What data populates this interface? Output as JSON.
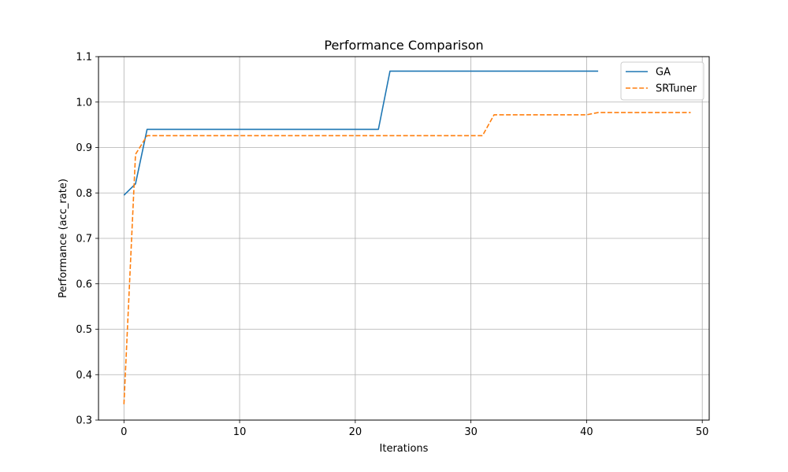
{
  "chart_data": {
    "type": "line",
    "title": "Performance Comparison",
    "xlabel": "Iterations",
    "ylabel": "Performance (acc_rate)",
    "xlim": [
      -2.2,
      50.6
    ],
    "ylim": [
      0.3,
      1.1
    ],
    "xticks": [
      0,
      10,
      20,
      30,
      40,
      50
    ],
    "xtick_labels": [
      "0",
      "10",
      "20",
      "30",
      "40",
      "50"
    ],
    "yticks": [
      0.3,
      0.4,
      0.5,
      0.6,
      0.7,
      0.8,
      0.9,
      1.0,
      1.1
    ],
    "ytick_labels": [
      "0.3",
      "0.4",
      "0.5",
      "0.6",
      "0.7",
      "0.8",
      "0.9",
      "1.0",
      "1.1"
    ],
    "grid": true,
    "legend_position": "top-right",
    "series": [
      {
        "name": "GA",
        "color": "#1f77b4",
        "style": "solid",
        "x": [
          0,
          1,
          2,
          3,
          4,
          5,
          6,
          7,
          8,
          9,
          10,
          11,
          12,
          13,
          14,
          15,
          16,
          17,
          18,
          19,
          20,
          21,
          22,
          23,
          24,
          25,
          26,
          27,
          28,
          29,
          30,
          31,
          32,
          33,
          34,
          35,
          36,
          37,
          38,
          39,
          40,
          41
        ],
        "y": [
          0.795,
          0.82,
          0.94,
          0.94,
          0.94,
          0.94,
          0.94,
          0.94,
          0.94,
          0.94,
          0.94,
          0.94,
          0.94,
          0.94,
          0.94,
          0.94,
          0.94,
          0.94,
          0.94,
          0.94,
          0.94,
          0.94,
          0.94,
          1.068,
          1.068,
          1.068,
          1.068,
          1.068,
          1.068,
          1.068,
          1.068,
          1.068,
          1.068,
          1.068,
          1.068,
          1.068,
          1.068,
          1.068,
          1.068,
          1.068,
          1.068,
          1.068
        ]
      },
      {
        "name": "SRTuner",
        "color": "#ff7f0e",
        "style": "dashed",
        "x": [
          0,
          1,
          2,
          3,
          4,
          5,
          6,
          7,
          8,
          9,
          10,
          11,
          12,
          13,
          14,
          15,
          16,
          17,
          18,
          19,
          20,
          21,
          22,
          23,
          24,
          25,
          26,
          27,
          28,
          29,
          30,
          31,
          32,
          33,
          34,
          35,
          36,
          37,
          38,
          39,
          40,
          41,
          42,
          43,
          44,
          45,
          46,
          47,
          48,
          49
        ],
        "y": [
          0.335,
          0.885,
          0.926,
          0.926,
          0.926,
          0.926,
          0.926,
          0.926,
          0.926,
          0.926,
          0.926,
          0.926,
          0.926,
          0.926,
          0.926,
          0.926,
          0.926,
          0.926,
          0.926,
          0.926,
          0.926,
          0.926,
          0.926,
          0.926,
          0.926,
          0.926,
          0.926,
          0.926,
          0.926,
          0.926,
          0.926,
          0.926,
          0.972,
          0.972,
          0.972,
          0.972,
          0.972,
          0.972,
          0.972,
          0.972,
          0.972,
          0.977,
          0.977,
          0.977,
          0.977,
          0.977,
          0.977,
          0.977,
          0.977,
          0.977
        ]
      }
    ]
  }
}
